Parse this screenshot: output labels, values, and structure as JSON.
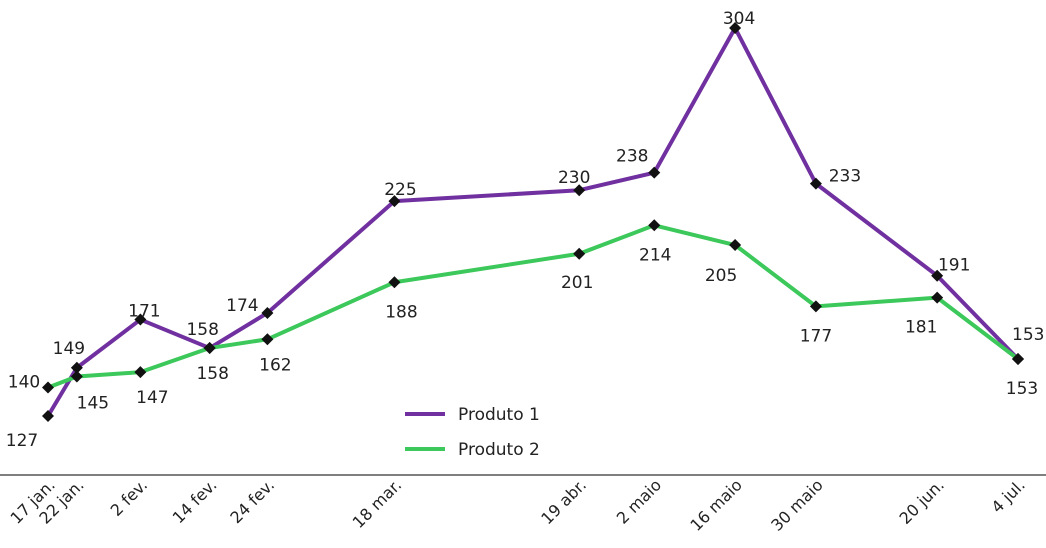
{
  "chart_data": {
    "type": "line",
    "title": "",
    "xlabel": "",
    "ylabel": "",
    "categories": [
      "17 jan.",
      "22 jan.",
      "2 fev.",
      "14 fev.",
      "24 fev.",
      "18 mar.",
      "19 abr.",
      "2 maio",
      "16 maio",
      "30 maio",
      "20 jun.",
      "4 jul."
    ],
    "x_day_of_year": [
      17,
      22,
      33,
      45,
      55,
      77,
      109,
      122,
      136,
      150,
      171,
      185
    ],
    "series": [
      {
        "name": "Produto 1",
        "color": "#7030a0",
        "values": [
          127,
          149,
          171,
          158,
          174,
          225,
          230,
          238,
          304,
          233,
          191,
          153
        ]
      },
      {
        "name": "Produto 2",
        "color": "#3cc85a",
        "values": [
          140,
          145,
          147,
          158,
          162,
          188,
          201,
          214,
          205,
          177,
          181,
          153
        ]
      }
    ],
    "ylim": [
      100,
      310
    ],
    "grid": false,
    "legend_position": "bottom-center",
    "marker": "diamond",
    "marker_color": "#111111",
    "axis_color": "#555555"
  }
}
